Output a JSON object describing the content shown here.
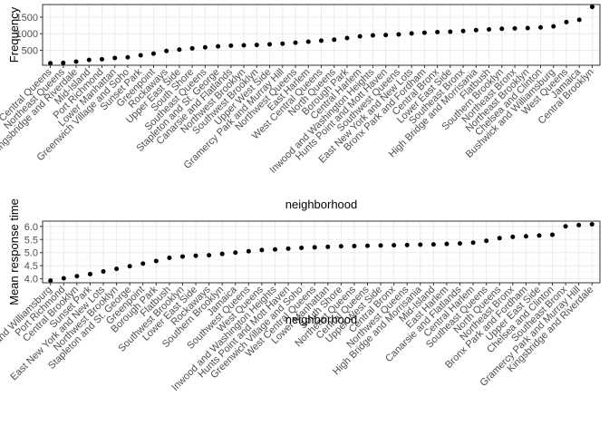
{
  "chart_data": [
    {
      "type": "scatter",
      "xlabel": "neighborhood",
      "ylabel": "Frequency",
      "ylim": [
        50,
        1880
      ],
      "yticks": [
        500,
        1000,
        1500
      ],
      "grid": true,
      "categories": [
        "Central Queens",
        "Northeast Queens",
        "Kingsbridge and Riverdale",
        "Mid-Island",
        "Port Richmond",
        "Lower Manhattan",
        "Greenwich Village and Soho",
        "Sunset Park",
        "Greenpoint",
        "Rockaways",
        "Upper East Side",
        "South Shore",
        "Southeast Queens",
        "Stapleton and St. George",
        "Canarsie and Flatlands",
        "Northwest Brooklyn",
        "Southwest Brooklyn",
        "Upper West Side",
        "Gramercy Park and Murray Hill",
        "Northwest Queens",
        "East Harlem",
        "West Central Queens",
        "North Queens",
        "Borough Park",
        "Central Harlem",
        "Inwood and Washington Heights",
        "Hunts Point and Mott Haven",
        "Southwest Queens",
        "East New York and New Lots",
        "Bronx Park and Fordham",
        "Central Bronx",
        "Lower East Side",
        "Southeast Bronx",
        "High Bridge and Morrisania",
        "Flatbush",
        "Southern Brooklyn",
        "Northeast Bronx",
        "Northeast Brooklyn",
        "Chelsea and Clinton",
        "Bushwick and Williamsburg",
        "West Queens",
        "Jamaica",
        "Central Brooklyn"
      ],
      "series": [
        {
          "values": [
            110,
            120,
            160,
            210,
            230,
            270,
            290,
            350,
            400,
            480,
            520,
            560,
            590,
            620,
            640,
            650,
            660,
            680,
            700,
            730,
            760,
            790,
            820,
            870,
            920,
            950,
            960,
            980,
            1010,
            1030,
            1050,
            1060,
            1080,
            1110,
            1130,
            1150,
            1160,
            1170,
            1190,
            1220,
            1350,
            1420,
            1810
          ]
        }
      ]
    },
    {
      "type": "scatter",
      "xlabel": "neighborhood",
      "ylabel": "Mean response time",
      "ylim": [
        3.85,
        6.2
      ],
      "yticks": [
        4.0,
        4.5,
        5.0,
        5.5,
        6.0
      ],
      "grid": true,
      "categories": [
        "Bushwick and Williamsburg",
        "Port Richmond",
        "Central Brooklyn",
        "Sunset Park",
        "East New York and New Lots",
        "Northwest Brooklyn",
        "Stapleton and St. George",
        "Greenpoint",
        "Borough Park",
        "Flatbush",
        "Southwest Brooklyn",
        "Lower East Side",
        "Rockaways",
        "Southern Brooklyn",
        "Jamaica",
        "Southwest Queens",
        "West Queens",
        "Inwood and Washington Heights",
        "Hunts Point and Mott Haven",
        "Greenwich Village and Soho",
        "West Central Queens",
        "Lower Manhattan",
        "South Shore",
        "Northeast Queens",
        "Central Queens",
        "Upper West Side",
        "Central Bronx",
        "Northwest Queens",
        "High Bridge and Morrisania",
        "Mid-Island",
        "East Harlem",
        "Canarsie and Flatlands",
        "Central Harlem",
        "Southeast Queens",
        "North Queens",
        "Northeast Bronx",
        "Bronx Park and Fordham",
        "Upper East Side",
        "Chelsea and Clinton",
        "Southeast Bronx",
        "Gramercy Park and Murray Hill",
        "Kingsbridge and Riverdale"
      ],
      "series": [
        {
          "values": [
            3.93,
            4.02,
            4.1,
            4.18,
            4.28,
            4.38,
            4.48,
            4.58,
            4.68,
            4.8,
            4.85,
            4.88,
            4.9,
            4.95,
            5.0,
            5.05,
            5.1,
            5.12,
            5.15,
            5.18,
            5.2,
            5.22,
            5.24,
            5.25,
            5.26,
            5.27,
            5.28,
            5.29,
            5.3,
            5.31,
            5.33,
            5.35,
            5.38,
            5.45,
            5.55,
            5.6,
            5.62,
            5.65,
            5.68,
            6.0,
            6.05,
            6.08
          ]
        }
      ]
    }
  ]
}
